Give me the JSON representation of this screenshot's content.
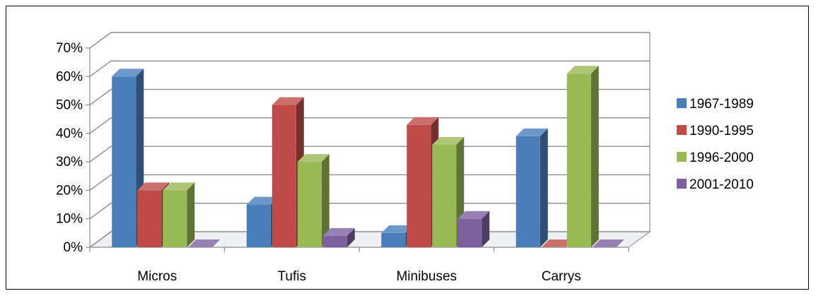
{
  "chart_data": {
    "type": "bar",
    "style": "3d-clustered-column",
    "categories": [
      "Micros",
      "Tufis",
      "Minibuses",
      "Carrys"
    ],
    "series": [
      {
        "name": "1967-1989",
        "color": "#4a7ebb",
        "values": [
          0.6,
          0.15,
          0.05,
          0.39
        ]
      },
      {
        "name": "1990-1995",
        "color": "#be4b48",
        "values": [
          0.2,
          0.5,
          0.43,
          0.0
        ]
      },
      {
        "name": "1996-2000",
        "color": "#98b954",
        "values": [
          0.2,
          0.3,
          0.36,
          0.61
        ]
      },
      {
        "name": "2001-2010",
        "color": "#7d60a0",
        "values": [
          0.0,
          0.04,
          0.1,
          0.0
        ]
      }
    ],
    "yticks": [
      "0%",
      "10%",
      "20%",
      "30%",
      "40%",
      "50%",
      "60%",
      "70%"
    ],
    "ylim": [
      0,
      0.7
    ],
    "title": "",
    "xlabel": "",
    "ylabel": "",
    "grid": true,
    "legend_position": "right"
  }
}
